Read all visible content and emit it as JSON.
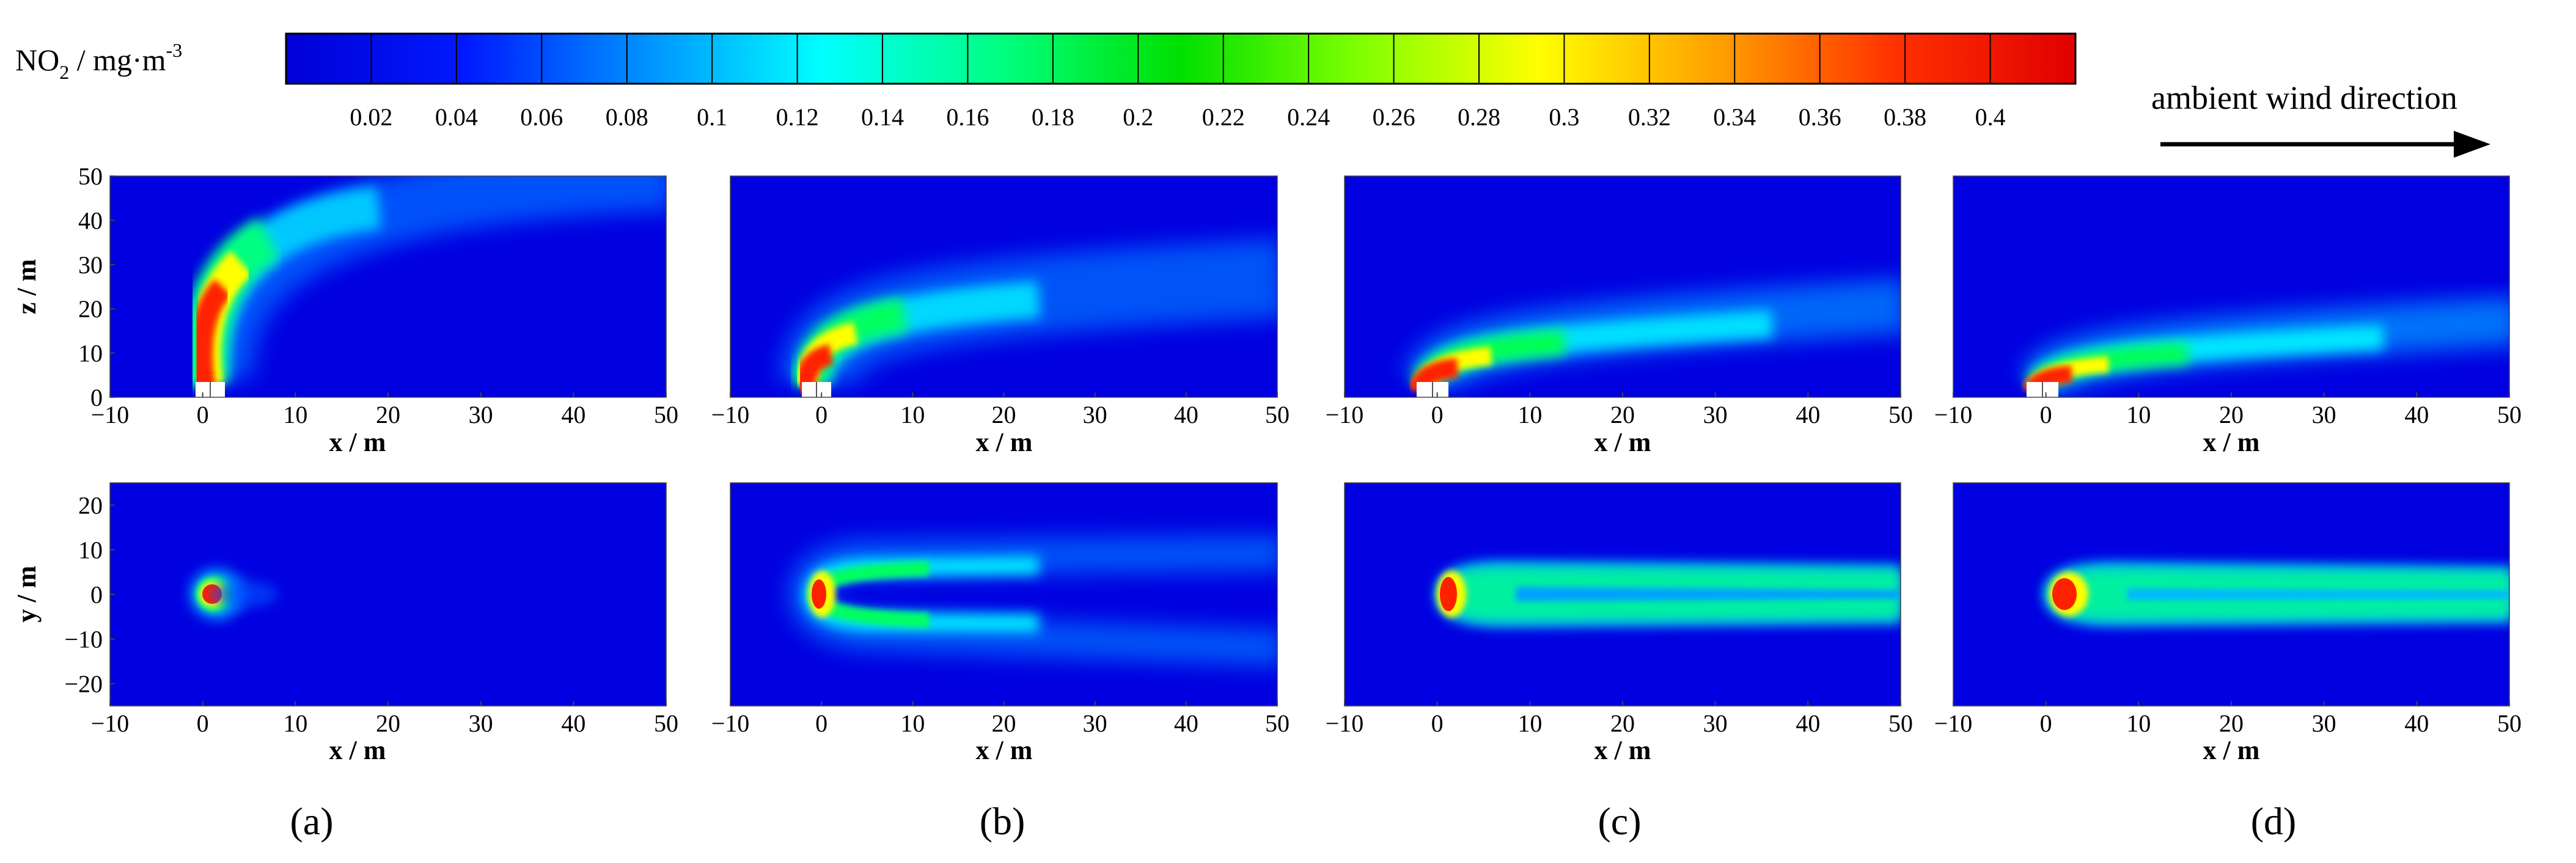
{
  "colorbar": {
    "title_main": "NO",
    "title_sub": "2",
    "title_rest": " / mg·m",
    "title_sup": "-3",
    "min": 0.0,
    "max": 0.42,
    "ticks": [
      "0.02",
      "0.04",
      "0.06",
      "0.08",
      "0.1",
      "0.12",
      "0.14",
      "0.16",
      "0.18",
      "0.2",
      "0.22",
      "0.24",
      "0.26",
      "0.28",
      "0.3",
      "0.32",
      "0.34",
      "0.36",
      "0.38",
      "0.4"
    ],
    "colors": [
      "#0000d6",
      "#0019ff",
      "#0090ff",
      "#00ffff",
      "#00ff40",
      "#00e000",
      "#b2ff00",
      "#ffff00",
      "#ffa000",
      "#ff3000",
      "#e00000"
    ]
  },
  "wind": {
    "label": "ambient wind direction"
  },
  "axes_labels": {
    "side_x": "x / m",
    "side_z": "z / m",
    "top_x": "x / m",
    "top_y": "y / m"
  },
  "panel_labels": [
    "(a)",
    "(b)",
    "(c)",
    "(d)"
  ],
  "chart_data": [
    {
      "type": "heatmap",
      "view": "side",
      "panel": "(a)",
      "xlabel": "x / m",
      "ylabel": "z / m",
      "xlim": [
        -10,
        50
      ],
      "ylim": [
        0,
        50
      ],
      "xticks": [
        -10,
        0,
        10,
        20,
        30,
        40,
        50
      ],
      "yticks": [
        0,
        10,
        20,
        30,
        40,
        50
      ],
      "colorbar_label": "NO2 / mg·m-3"
    },
    {
      "type": "heatmap",
      "view": "side",
      "panel": "(b)",
      "xlabel": "x / m",
      "xlim": [
        -10,
        50
      ],
      "ylim": [
        0,
        50
      ],
      "xticks": [
        -10,
        0,
        10,
        20,
        30,
        40,
        50
      ]
    },
    {
      "type": "heatmap",
      "view": "side",
      "panel": "(c)",
      "xlabel": "x / m",
      "xlim": [
        -10,
        50
      ],
      "ylim": [
        0,
        50
      ],
      "xticks": [
        -10,
        0,
        10,
        20,
        30,
        40,
        50
      ]
    },
    {
      "type": "heatmap",
      "view": "side",
      "panel": "(d)",
      "xlabel": "x / m",
      "xlim": [
        -10,
        50
      ],
      "ylim": [
        0,
        50
      ],
      "xticks": [
        -10,
        0,
        10,
        20,
        30,
        40,
        50
      ]
    },
    {
      "type": "heatmap",
      "view": "top",
      "panel": "(a)",
      "xlabel": "x / m",
      "ylabel": "y / m",
      "xlim": [
        -10,
        50
      ],
      "ylim": [
        -25,
        25
      ],
      "xticks": [
        -10,
        0,
        10,
        20,
        30,
        40,
        50
      ],
      "yticks": [
        -20,
        -10,
        0,
        10,
        20
      ]
    },
    {
      "type": "heatmap",
      "view": "top",
      "panel": "(b)",
      "xlabel": "x / m",
      "xlim": [
        -10,
        50
      ],
      "ylim": [
        -25,
        25
      ],
      "xticks": [
        -10,
        0,
        10,
        20,
        30,
        40,
        50
      ]
    },
    {
      "type": "heatmap",
      "view": "top",
      "panel": "(c)",
      "xlabel": "x / m",
      "xlim": [
        -10,
        50
      ],
      "ylim": [
        -25,
        25
      ],
      "xticks": [
        -10,
        0,
        10,
        20,
        30,
        40,
        50
      ]
    },
    {
      "type": "heatmap",
      "view": "top",
      "panel": "(d)",
      "xlabel": "x / m",
      "xlim": [
        -10,
        50
      ],
      "ylim": [
        -25,
        25
      ],
      "xticks": [
        -10,
        0,
        10,
        20,
        30,
        40,
        50
      ]
    }
  ]
}
